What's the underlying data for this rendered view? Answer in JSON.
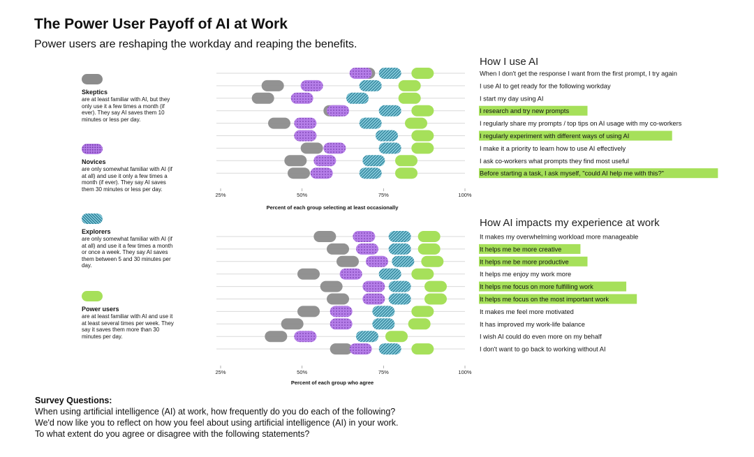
{
  "title": "The Power User Payoff of AI at Work",
  "subtitle": "Power users are reshaping the workday and reaping the benefits.",
  "legend": [
    {
      "name": "Skeptics",
      "description": "are at least familiar with AI, but they only use it a few times a month (if ever). They say AI saves them 10 minutes or less per day.",
      "color": "#8c8c8c",
      "pattern": "solid"
    },
    {
      "name": "Novices",
      "description": "are only somewhat familiar with AI (if at all) and use it only a few times a month (if ever). They say AI saves them 30 minutes or less per day.",
      "color": "#b57ee8",
      "pattern": "dots"
    },
    {
      "name": "Explorers",
      "description": "are only somewhat familiar with AI (if at all) and use it a few times a month or once a week. They say AI saves them between 5 and 30 minutes per day.",
      "color": "#3a9fb8",
      "pattern": "hatch"
    },
    {
      "name": "Power users",
      "description": "are at least familiar with AI and use it at least several times per week. They say it saves them more than 30 minutes per day.",
      "color": "#a6e05a",
      "pattern": "solid"
    }
  ],
  "chart_data": [
    {
      "type": "dot",
      "title": "How I use AI",
      "xlabel": "Percent of each group selecting at least occasionally",
      "xlim": [
        25,
        100
      ],
      "xticks": [
        {
          "value": 25,
          "label": "25%"
        },
        {
          "value": 50,
          "label": "50%"
        },
        {
          "value": 75,
          "label": "75%"
        },
        {
          "value": 100,
          "label": "100%"
        }
      ],
      "categories": [
        "When I don't get the response I want from the first prompt, I try again",
        "I use AI to get ready for the following workday",
        "I start my day using AI",
        "I research and try new prompts",
        "I regularly share my prompts / top tips on AI usage with my co-workers",
        "I regularly experiment with different ways of using AI",
        "I make it a priority to learn how to use AI effectively",
        "I ask co-workers what prompts they find most useful",
        "Before starting a task, I ask myself, \"could AI help me with this?\""
      ],
      "highlighted": [
        false,
        false,
        false,
        true,
        false,
        true,
        false,
        false,
        true
      ],
      "series": [
        {
          "name": "Skeptics",
          "values": [
            69,
            41,
            38,
            60,
            43,
            51,
            53,
            48,
            49
          ]
        },
        {
          "name": "Novices",
          "values": [
            68,
            53,
            50,
            61,
            51,
            51,
            60,
            57,
            56
          ]
        },
        {
          "name": "Explorers",
          "values": [
            77,
            71,
            67,
            77,
            71,
            76,
            77,
            72,
            71
          ]
        },
        {
          "name": "Power users",
          "values": [
            87,
            83,
            83,
            87,
            85,
            87,
            87,
            82,
            82
          ]
        }
      ]
    },
    {
      "type": "dot",
      "title": "How AI impacts my experience at work",
      "xlabel": "Percent of each group who agree",
      "xlim": [
        25,
        100
      ],
      "xticks": [
        {
          "value": 25,
          "label": "25%"
        },
        {
          "value": 50,
          "label": "50%"
        },
        {
          "value": 75,
          "label": "75%"
        },
        {
          "value": 100,
          "label": "100%"
        }
      ],
      "categories": [
        "It makes my overwhelming workload more manageable",
        "It helps me be more creative",
        "It helps me be more productive",
        "It helps me enjoy my work more",
        "It helps me focus on more fulfilling work",
        "It helps me focus on the most important work",
        "It makes me feel more motivated",
        "It has improved my work-life balance",
        "I wish AI could do even more on my behalf",
        "I don't want to go back to working without AI"
      ],
      "highlighted": [
        false,
        true,
        true,
        false,
        true,
        true,
        false,
        false,
        false,
        false
      ],
      "series": [
        {
          "name": "Skeptics",
          "values": [
            57,
            61,
            64,
            52,
            59,
            61,
            52,
            47,
            42,
            62
          ]
        },
        {
          "name": "Novices",
          "values": [
            69,
            70,
            73,
            65,
            72,
            72,
            62,
            62,
            51,
            68
          ]
        },
        {
          "name": "Explorers",
          "values": [
            80,
            80,
            81,
            77,
            80,
            80,
            75,
            75,
            70,
            77
          ]
        },
        {
          "name": "Power users",
          "values": [
            89,
            89,
            90,
            87,
            91,
            91,
            87,
            86,
            79,
            87
          ]
        }
      ]
    }
  ],
  "survey": {
    "heading": "Survey Questions:",
    "lines": [
      "When using artificial intelligence (AI) at work, how frequently do you do each of the following?",
      "We'd now like you to reflect on how you feel about using artificial intelligence (AI) in your work.",
      "To what extent do you agree or disagree with the following statements?"
    ]
  }
}
